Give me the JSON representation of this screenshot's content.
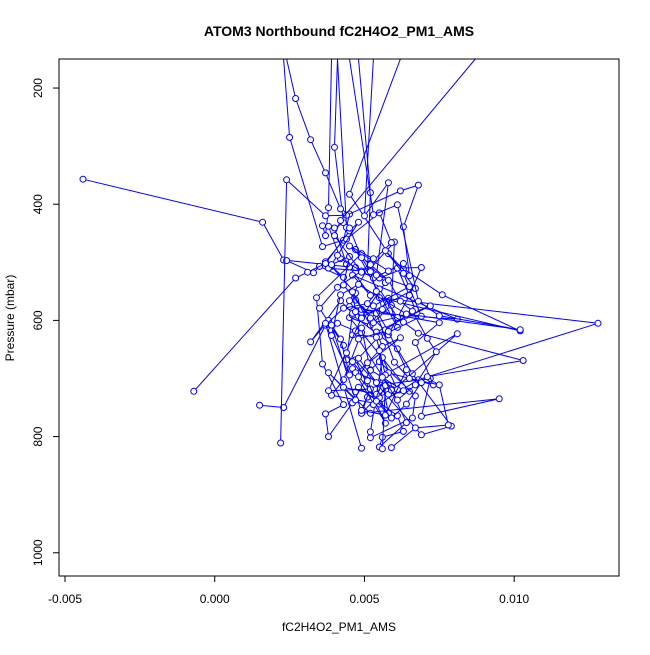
{
  "chart_data": {
    "type": "line",
    "title": "ATOM3 Northbound fC2H4O2_PM1_AMS",
    "xlabel": "fC2H4O2_PM1_AMS",
    "ylabel": "Pressure (mbar)",
    "xlim": [
      -0.0052,
      0.0135
    ],
    "ylim": [
      1040,
      150
    ],
    "y_reversed": true,
    "x_ticks": [
      -0.005,
      0.0,
      0.005,
      0.01
    ],
    "x_tick_labels": [
      "-0.005",
      "0.000",
      "0.005",
      "0.010"
    ],
    "y_ticks": [
      200,
      400,
      600,
      800,
      1000
    ],
    "y_tick_labels": [
      "200",
      "400",
      "600",
      "800",
      "1000"
    ],
    "grid": false,
    "series_color": "#0000ff",
    "series": [
      {
        "x": [
          0.0062,
          0.0045,
          0.0058,
          0.0067,
          0.0049,
          0.0057,
          0.0047,
          0.0061,
          0.0058,
          0.0052,
          0.0045,
          0.0065,
          0.0051,
          0.0049,
          0.0047,
          0.0057,
          0.0072,
          0.0069,
          0.0095,
          0.0049,
          0.0058
        ],
        "y": [
          150,
          383,
          485,
          545,
          595,
          535,
          478,
          612,
          562,
          608,
          595,
          722,
          732,
          760,
          723,
          710,
          700,
          765,
          735,
          760,
          712
        ]
      },
      {
        "x": [
          0.0041,
          0.004,
          0.0043,
          0.004,
          0.0044,
          0.0047,
          0.0055,
          0.0063,
          0.0076,
          0.0102,
          0.0055,
          0.0128,
          0.0068,
          0.0055,
          0.0055,
          0.0039,
          0.0043,
          0.0049
        ],
        "y": [
          150,
          302,
          432,
          441,
          503,
          509,
          527,
          511,
          556,
          618,
          561,
          605,
          702,
          743,
          744,
          729,
          702,
          621
        ]
      },
      {
        "x": [
          -0.0044,
          0.0016,
          0.0023,
          0.0045,
          0.0052,
          0.0046,
          0.0081,
          0.0049,
          0.0046,
          0.0061,
          0.0066,
          0.0079,
          0.0069,
          0.0047,
          0.0057,
          0.0046,
          0.0058,
          0.0056
        ],
        "y": [
          357,
          431,
          496,
          508,
          557,
          522,
          598,
          586,
          591,
          649,
          692,
          782,
          797,
          668,
          777,
          683,
          760,
          707
        ]
      },
      {
        "x": [
          0.0048,
          0.0052,
          0.0051,
          0.006,
          0.0059,
          0.0053,
          0.0064,
          0.0072,
          0.0054,
          0.0056,
          0.0062,
          0.0047,
          0.0063,
          0.0052,
          0.0055,
          0.0067,
          0.0066,
          0.0052
        ],
        "y": [
          150,
          380,
          516,
          465,
          574,
          604,
          591,
          575,
          620,
          645,
          630,
          690,
          721,
          685,
          671,
          730,
          768,
          802
        ]
      },
      {
        "x": [
          0.0039,
          0.0038,
          0.0037,
          0.0036,
          0.0038,
          0.0042,
          0.0053,
          0.0063,
          0.0058,
          0.0049,
          0.0034,
          0.0036,
          0.0043,
          0.0037,
          0.0038,
          0.0046,
          0.0052,
          0.0049
        ],
        "y": [
          150,
          406,
          454,
          437,
          438,
          494,
          527,
          502,
          515,
          485,
          561,
          675,
          745,
          761,
          800,
          742,
          686,
          613
        ]
      },
      {
        "x": [
          0.0024,
          0.0033,
          0.0035,
          0.0043,
          0.0039,
          0.0047,
          0.0049,
          0.0054,
          0.0045,
          0.0075,
          0.0067,
          0.0073,
          0.0058,
          0.0081,
          0.0058,
          0.0061,
          0.0056,
          0.0052
        ],
        "y": [
          497,
          518,
          507,
          526,
          507,
          553,
          581,
          586,
          576,
          604,
          638,
          711,
          690,
          623,
          727,
          719,
          664,
          792
        ]
      },
      {
        "x": [
          0.0024,
          0.0027,
          0.0032,
          0.0037,
          0.0042,
          0.0045,
          0.0043,
          0.0037,
          0.0038,
          0.0049,
          0.0041,
          0.0035,
          0.0043,
          0.0038,
          0.0032,
          0.0042,
          0.0046,
          0.0044
        ],
        "y": [
          150,
          218,
          289,
          346,
          408,
          417,
          462,
          499,
          510,
          515,
          543,
          579,
          643,
          600,
          637,
          566,
          588,
          668
        ]
      },
      {
        "x": [
          0.0023,
          0.0025,
          0.0036,
          0.0044,
          0.0055,
          0.0059,
          0.0052,
          0.0045,
          0.0047,
          0.0057,
          0.0048,
          0.0059,
          0.0064,
          0.0055,
          0.0056,
          0.0063,
          0.0061,
          0.0048
        ],
        "y": [
          150,
          285,
          473,
          460,
          415,
          466,
          502,
          566,
          565,
          618,
          632,
          720,
          776,
          818,
          801,
          791,
          764,
          715
        ]
      },
      {
        "x": [
          -0.0007,
          0.0027,
          0.0031,
          0.0037,
          0.0045,
          0.0048,
          0.0041,
          0.0039,
          0.0045,
          0.0043,
          0.0052,
          0.0054,
          0.006,
          0.0065,
          0.0075,
          0.0078,
          0.0067,
          0.0059
        ],
        "y": [
          722,
          527,
          517,
          502,
          446,
          431,
          488,
          504,
          490,
          539,
          596,
          588,
          672,
          700,
          711,
          780,
          785,
          819
        ]
      },
      {
        "x": [
          0.0015,
          0.0023,
          0.0037,
          0.0043,
          0.0051,
          0.0055,
          0.0061,
          0.0058,
          0.0065,
          0.0069,
          0.0061,
          0.0067,
          0.0057,
          0.0048,
          0.0054,
          0.0055,
          0.0057,
          0.0056
        ],
        "y": [
          746,
          750,
          608,
          579,
          571,
          546,
          595,
          625,
          557,
          509,
          510,
          581,
          616,
          665,
          707,
          733,
          712,
          821
        ]
      },
      {
        "x": [
          0.0022,
          0.0024,
          0.0037,
          0.0044,
          0.0062,
          0.0068,
          0.0063,
          0.0065,
          0.0057,
          0.0063,
          0.0069,
          0.0055,
          0.0046,
          0.0047,
          0.0041,
          0.0039,
          0.0037,
          0.0049
        ],
        "y": [
          811,
          358,
          420,
          419,
          377,
          367,
          439,
          523,
          480,
          519,
          593,
          628,
          625,
          618,
          605,
          617,
          605,
          820
        ]
      },
      {
        "x": [
          0.0045,
          0.0053,
          0.0061,
          0.0068,
          0.0075,
          0.0102,
          0.0064,
          0.0048,
          0.0042,
          0.0039,
          0.0045,
          0.0042,
          0.0039,
          0.0047,
          0.0038,
          0.0052,
          0.0043,
          0.0054
        ],
        "y": [
          150,
          418,
          401,
          567,
          592,
          616,
          589,
          538,
          556,
          626,
          694,
          632,
          608,
          737,
          690,
          760,
          715,
          727
        ]
      },
      {
        "x": [
          0.0053,
          0.005,
          0.0058,
          0.0054,
          0.0065,
          0.0053,
          0.0058,
          0.0064,
          0.0057,
          0.0049,
          0.0052,
          0.0038,
          0.0049,
          0.0047,
          0.0046,
          0.0054,
          0.0057,
          0.0053
        ],
        "y": [
          150,
          420,
          363,
          522,
          542,
          575,
          619,
          685,
          763,
          755,
          718,
          721,
          596,
          585,
          551,
          629,
          694,
          745
        ]
      },
      {
        "x": [
          0.0087,
          0.0042,
          0.004,
          0.0049,
          0.0053,
          0.0045,
          0.0052,
          0.0058,
          0.0062,
          0.0066,
          0.0071,
          0.0074,
          0.0067,
          0.0061,
          0.0056,
          0.0055,
          0.0051,
          0.0048
        ],
        "y": [
          150,
          428,
          454,
          517,
          494,
          472,
          504,
          531,
          567,
          584,
          631,
          654,
          711,
          737,
          698,
          652,
          673,
          697
        ]
      },
      {
        "x": [
          0.0041,
          0.0044,
          0.0045,
          0.0049,
          0.0052,
          0.0054,
          0.0056,
          0.0063,
          0.0068,
          0.0103,
          0.0071,
          0.0069,
          0.0064,
          0.0059,
          0.0054,
          0.0051,
          0.0046,
          0.0044
        ],
        "y": [
          150,
          440,
          441,
          492,
          516,
          550,
          581,
          603,
          622,
          669,
          697,
          707,
          744,
          768,
          739,
          704,
          671,
          656
        ]
      }
    ]
  }
}
